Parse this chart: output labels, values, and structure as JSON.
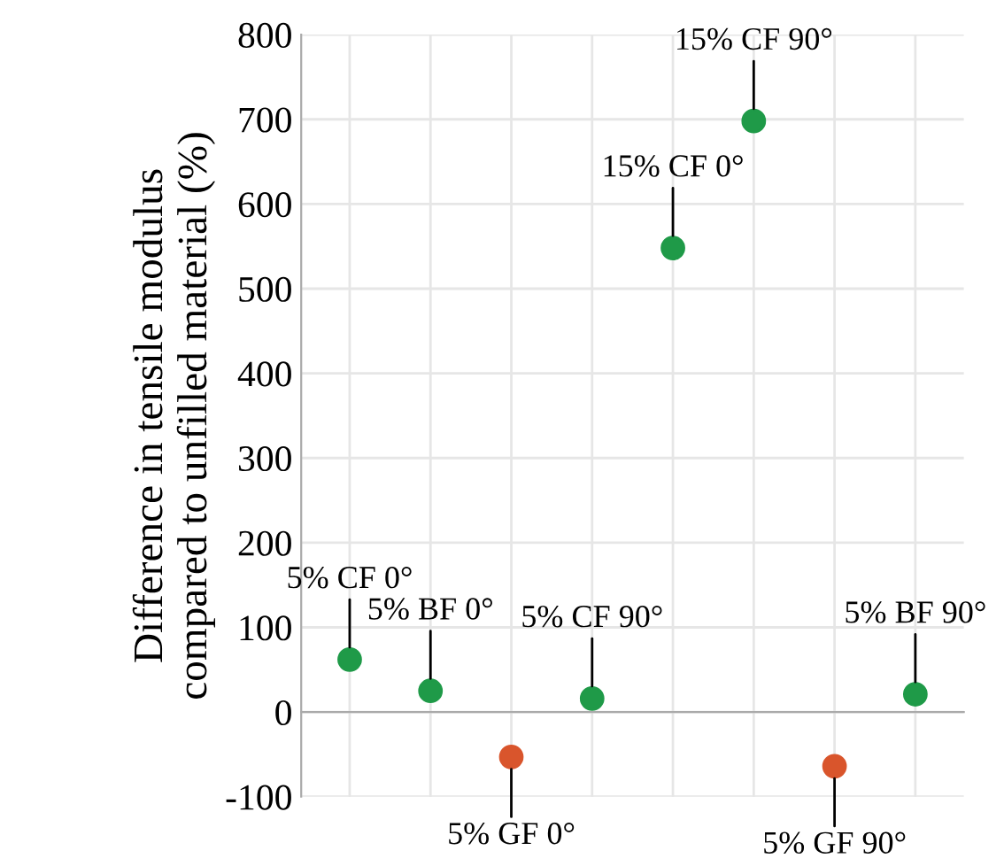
{
  "chart_data": {
    "type": "scatter",
    "ylabel": "Difference in tensile modulus\ncompared to unfilled material (%)",
    "categories": [
      null,
      null,
      null,
      null,
      null,
      null,
      null,
      null
    ],
    "series": [
      {
        "name": "5% CF 0°",
        "color": "#1f9a48",
        "values": [
          62,
          null,
          null,
          null,
          null,
          null,
          null,
          null
        ]
      },
      {
        "name": "5% BF 0°",
        "color": "#1f9a48",
        "values": [
          null,
          25,
          null,
          null,
          null,
          null,
          null,
          null
        ]
      },
      {
        "name": "5% GF 0°",
        "color": "#d9552c",
        "values": [
          null,
          null,
          -53,
          null,
          null,
          null,
          null,
          null
        ]
      },
      {
        "name": "5% CF 90°",
        "color": "#1f9a48",
        "values": [
          null,
          null,
          null,
          16,
          null,
          null,
          null,
          null
        ]
      },
      {
        "name": "15% CF 0°",
        "color": "#1f9a48",
        "values": [
          null,
          null,
          null,
          null,
          548,
          null,
          null,
          null
        ]
      },
      {
        "name": "15% CF 90°",
        "color": "#1f9a48",
        "values": [
          null,
          null,
          null,
          null,
          null,
          698,
          null,
          null
        ]
      },
      {
        "name": "5% GF 90°",
        "color": "#d9552c",
        "values": [
          null,
          null,
          null,
          null,
          null,
          null,
          -64,
          null
        ]
      },
      {
        "name": "5% BF 90°",
        "color": "#1f9a48",
        "values": [
          null,
          null,
          null,
          null,
          null,
          null,
          null,
          21
        ]
      }
    ],
    "ylim": [
      -100,
      800
    ],
    "yticks": [
      -100,
      0,
      100,
      200,
      300,
      400,
      500,
      600,
      700,
      800
    ],
    "grid": true,
    "marker": "circle",
    "tick_labels": "y"
  }
}
